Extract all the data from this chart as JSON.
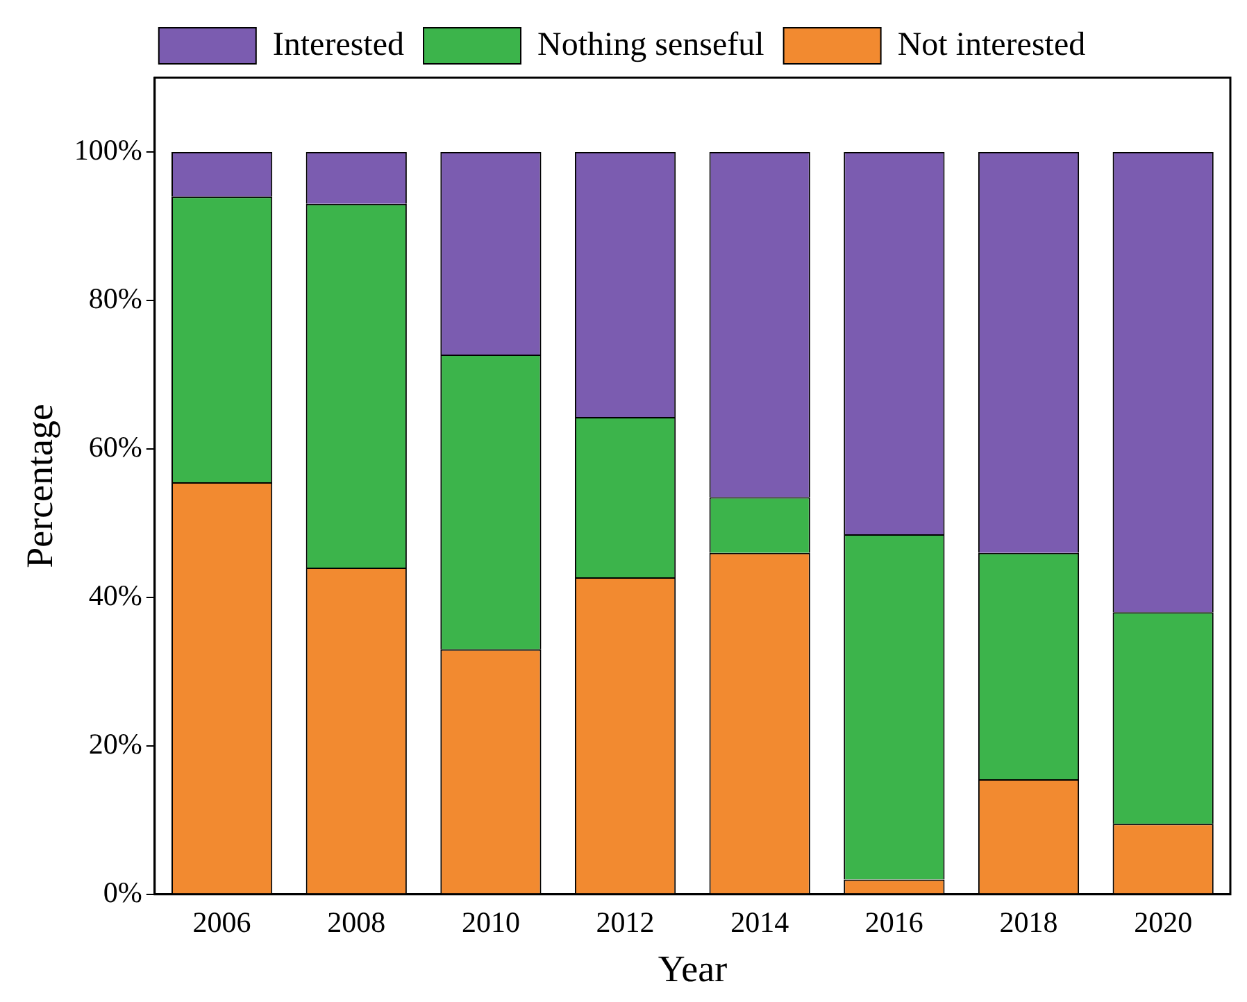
{
  "chart_data": {
    "type": "bar",
    "stacked": true,
    "xlabel": "Year",
    "ylabel": "Percentage",
    "categories": [
      "2006",
      "2008",
      "2010",
      "2012",
      "2014",
      "2016",
      "2018",
      "2020"
    ],
    "series": [
      {
        "name": "Not interested",
        "color": "#f28a30",
        "values": [
          55.5,
          44,
          33,
          42.7,
          46,
          2,
          15.5,
          9.5
        ]
      },
      {
        "name": "Nothing senseful",
        "color": "#3cb44b",
        "values": [
          38.5,
          49,
          39.7,
          21.6,
          7.5,
          46.5,
          30.5,
          28.5
        ]
      },
      {
        "name": "Interested",
        "color": "#7b5cb0",
        "values": [
          6,
          7,
          27.3,
          35.7,
          46.5,
          51.5,
          54,
          62
        ]
      }
    ],
    "ylim": [
      0,
      110
    ],
    "yticks": [
      {
        "value": 0,
        "label": "0%"
      },
      {
        "value": 20,
        "label": "20%"
      },
      {
        "value": 40,
        "label": "40%"
      },
      {
        "value": 60,
        "label": "60%"
      },
      {
        "value": 80,
        "label": "80%"
      },
      {
        "value": 100,
        "label": "100%"
      }
    ],
    "grid": false,
    "legend": "top"
  }
}
